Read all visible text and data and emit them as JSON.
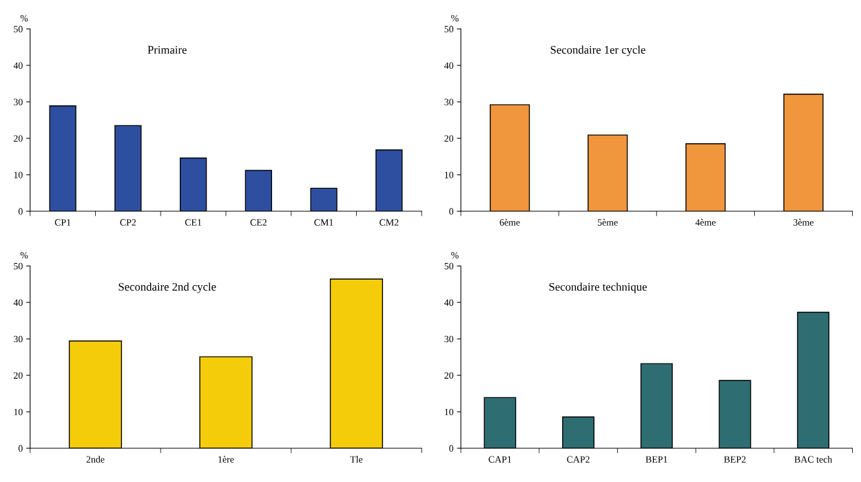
{
  "chart_data": [
    {
      "type": "bar",
      "title": "Primaire",
      "ylabel": "%",
      "categories": [
        "CP1",
        "CP2",
        "CE1",
        "CE2",
        "CM1",
        "CM2"
      ],
      "values": [
        28.9,
        23.5,
        14.6,
        11.2,
        6.3,
        16.8
      ],
      "color": "#2e4fa0",
      "ylim": [
        0,
        50
      ],
      "yticks": [
        0,
        10,
        20,
        30,
        40,
        50
      ],
      "grid": false,
      "legend": false
    },
    {
      "type": "bar",
      "title": "Secondaire 1er cycle",
      "ylabel": "%",
      "categories": [
        "6ème",
        "5ème",
        "4ème",
        "3ème"
      ],
      "values": [
        29.2,
        20.9,
        18.5,
        32.1
      ],
      "color": "#f0963c",
      "ylim": [
        0,
        50
      ],
      "yticks": [
        0,
        10,
        20,
        30,
        40,
        50
      ],
      "grid": false,
      "legend": false
    },
    {
      "type": "bar",
      "title": "Secondaire 2nd cycle",
      "ylabel": "%",
      "categories": [
        "2nde",
        "1ère",
        "Tle"
      ],
      "values": [
        29.4,
        25.1,
        46.4
      ],
      "color": "#f5cc0a",
      "ylim": [
        0,
        50
      ],
      "yticks": [
        0,
        10,
        20,
        30,
        40,
        50
      ],
      "grid": false,
      "legend": false
    },
    {
      "type": "bar",
      "title": "Secondaire technique",
      "ylabel": "%",
      "categories": [
        "CAP1",
        "CAP2",
        "BEP1",
        "BEP2",
        "BAC tech"
      ],
      "values": [
        13.9,
        8.6,
        23.2,
        18.6,
        37.3
      ],
      "color": "#2e6e72",
      "ylim": [
        0,
        50
      ],
      "yticks": [
        0,
        10,
        20,
        30,
        40,
        50
      ],
      "grid": false,
      "legend": false
    }
  ]
}
